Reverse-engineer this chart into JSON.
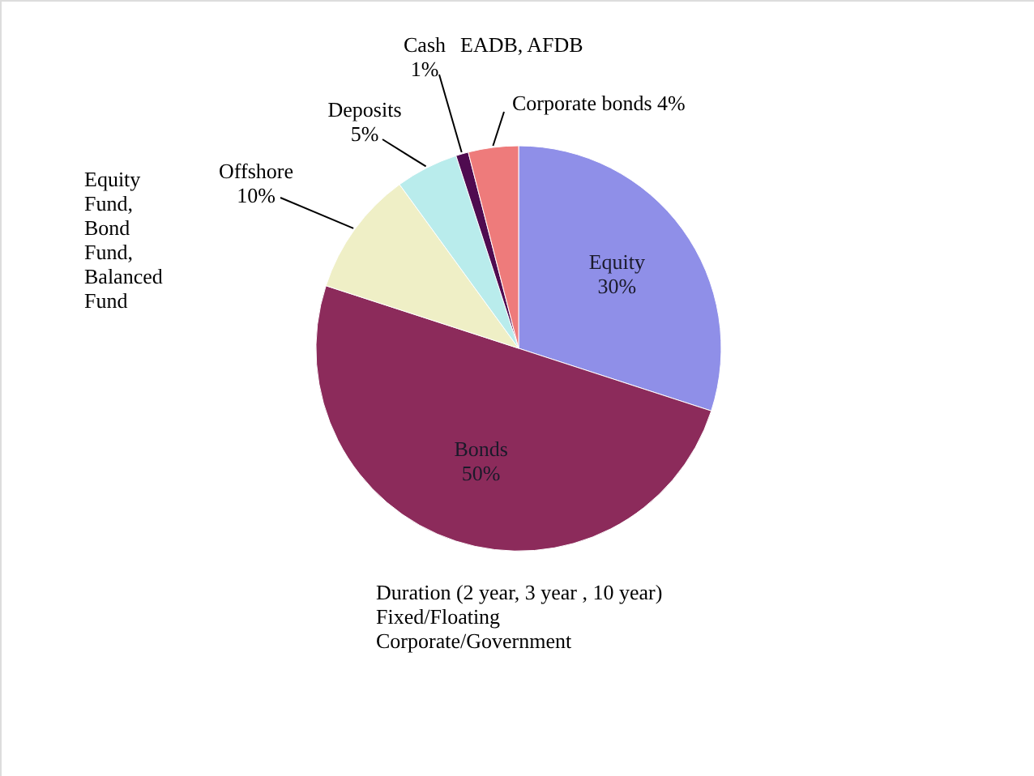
{
  "chart_data": {
    "type": "pie",
    "categories": [
      "Equity",
      "Bonds",
      "Offshore",
      "Deposits",
      "Cash",
      "Corporate bonds"
    ],
    "values": [
      30,
      50,
      10,
      5,
      1,
      4
    ],
    "colors": [
      "#8f8fe8",
      "#8c2b5b",
      "#efefc6",
      "#b9ecec",
      "#4f0b50",
      "#ee7b7b"
    ],
    "value_labels": [
      "30%",
      "50%",
      "10%",
      "5%",
      "1%",
      "4%"
    ],
    "annotations": [
      "EADB, AFDB",
      "Equity\nFund,\nBond\nFund,\nBalanced\nFund",
      "Duration (2 year, 3 year , 10 year)\nFixed/Floating\nCorporate/Government"
    ]
  }
}
